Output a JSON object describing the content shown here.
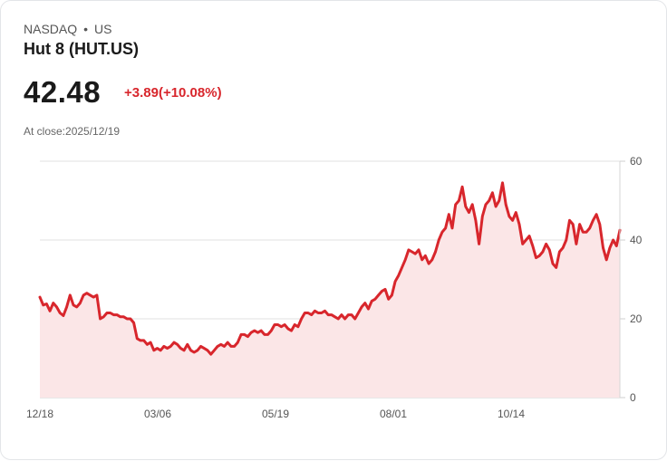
{
  "header": {
    "exchange": "NASDAQ",
    "separator": "•",
    "region": "US",
    "title": "Hut 8 (HUT.US)",
    "price": "42.48",
    "change": "+3.89(+10.08%)",
    "close_label": "At close:2025/12/19"
  },
  "colors": {
    "line": "#d8262c",
    "fill": "#fbe6e7",
    "grid": "#e2e2e2"
  },
  "chart_data": {
    "type": "area",
    "title": "Hut 8 (HUT.US)",
    "xlabel": "",
    "ylabel": "",
    "ylim": [
      0,
      60
    ],
    "yticks": [
      0,
      20,
      40,
      60
    ],
    "xtick_labels": [
      "12/18",
      "03/06",
      "05/19",
      "08/01",
      "10/14"
    ],
    "grid": true,
    "y_axis_position": "right",
    "series": [
      {
        "name": "HUT.US",
        "values": [
          25.5,
          23.5,
          23.8,
          22,
          24,
          23,
          21.5,
          20.8,
          23,
          26,
          23.5,
          23,
          24,
          26,
          26.5,
          26,
          25.5,
          26,
          20,
          20.5,
          21.5,
          21.5,
          21,
          21,
          20.5,
          20.5,
          20,
          20,
          19,
          15,
          14.5,
          14.5,
          13.5,
          14,
          12,
          12.5,
          12,
          13,
          12.5,
          13,
          14,
          13.5,
          12.5,
          12,
          13.5,
          12,
          11.5,
          12,
          13,
          12.5,
          12,
          11,
          12,
          13,
          13.5,
          13,
          14,
          13,
          13,
          14,
          16,
          16,
          15.5,
          16.5,
          17,
          16.5,
          17,
          16,
          16,
          17,
          18.5,
          18.5,
          18,
          18.5,
          17.5,
          17,
          18.5,
          18,
          20,
          21.5,
          21.5,
          21,
          22,
          21.5,
          21.5,
          22,
          21,
          21,
          20.5,
          20,
          21,
          20,
          21,
          21,
          20,
          21.5,
          23,
          24,
          22.5,
          24.5,
          25,
          26,
          27,
          27.5,
          25,
          26,
          29.5,
          31,
          33,
          35,
          37.5,
          37,
          36.5,
          37.5,
          35,
          36,
          34,
          35,
          37,
          40,
          42,
          43,
          46.5,
          43,
          49,
          50,
          53.5,
          48.5,
          47,
          49,
          45,
          39,
          46,
          49,
          50,
          52,
          48.5,
          50,
          54.5,
          49,
          46,
          45,
          47,
          44,
          39,
          40,
          41,
          38.5,
          35.5,
          36,
          37,
          39,
          37.5,
          34,
          33,
          37,
          38,
          40,
          45,
          44,
          39,
          44,
          42,
          42,
          43,
          45,
          46.5,
          44,
          38,
          35,
          38,
          40,
          38.5,
          42.5
        ]
      }
    ]
  },
  "axis": {
    "y_labels": [
      "60",
      "40",
      "20",
      "0"
    ],
    "x_labels": [
      "12/18",
      "03/06",
      "05/19",
      "08/01",
      "10/14"
    ]
  }
}
